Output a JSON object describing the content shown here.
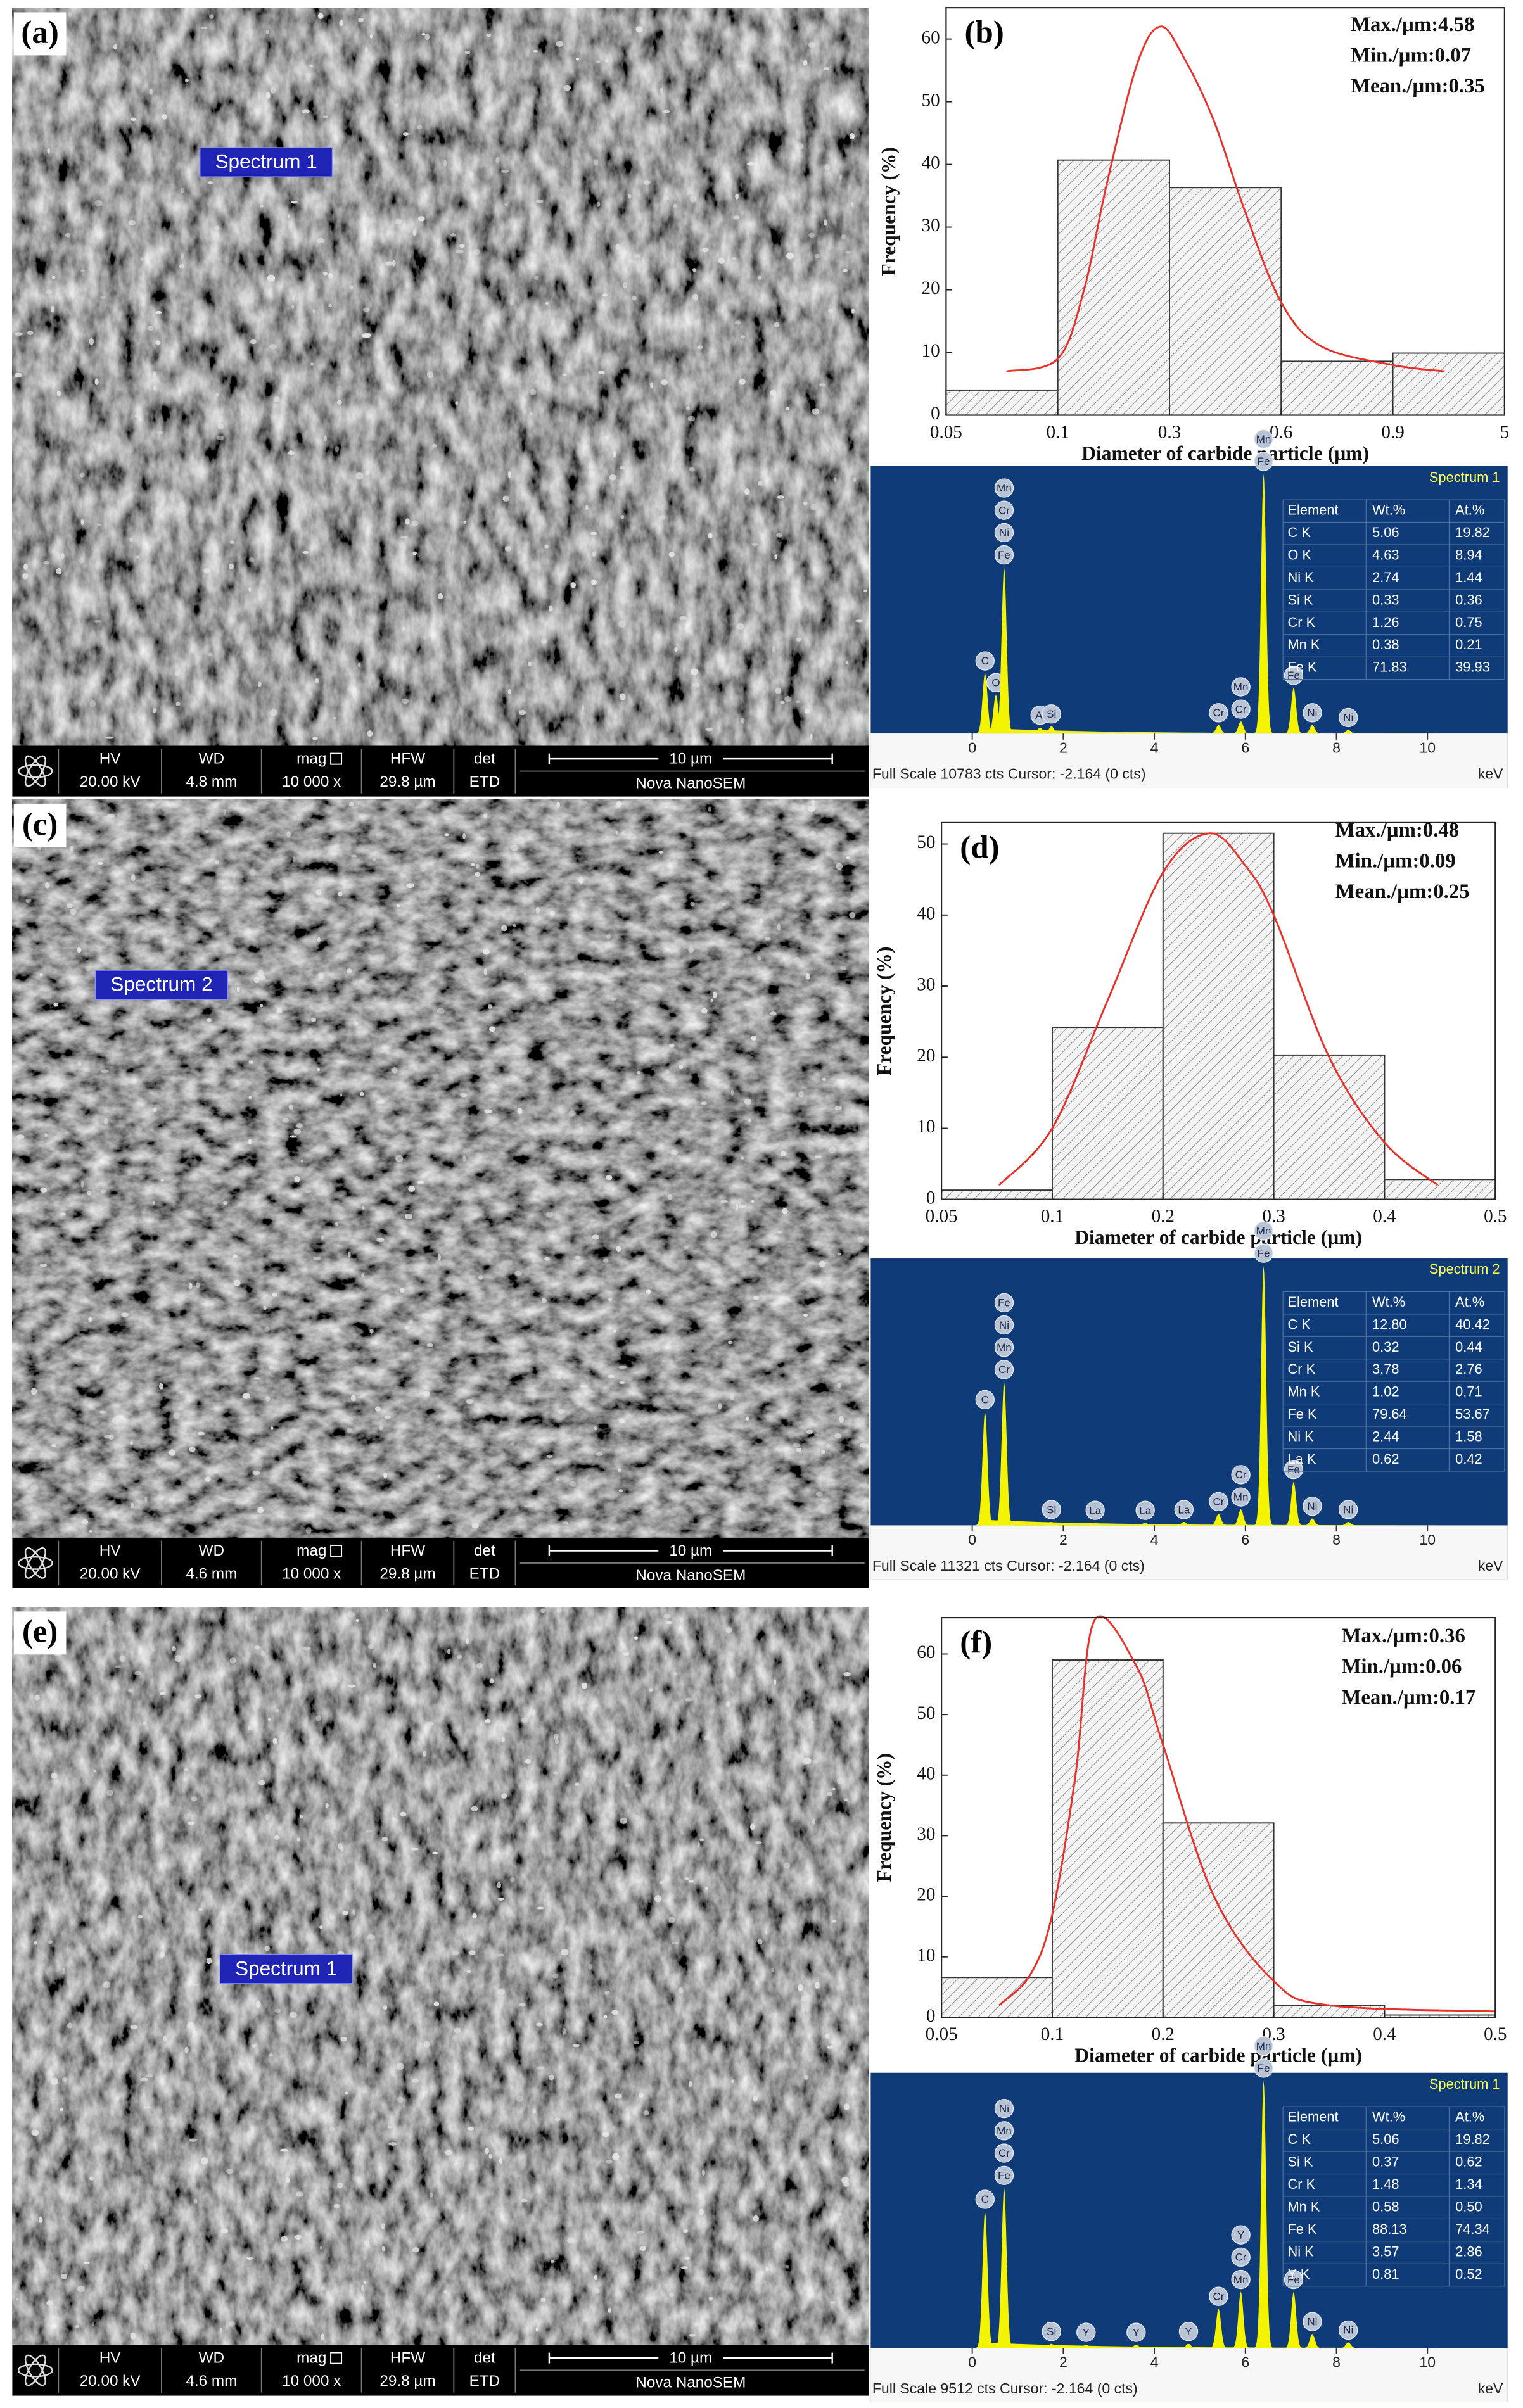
{
  "sem_images": [
    {
      "panel_label": "(a)",
      "spectrum_label": "Spectrum 1",
      "info": [
        [
          "HV",
          "20.00 kV"
        ],
        [
          "WD",
          "4.8 mm"
        ],
        [
          "mag",
          "10 000 x"
        ],
        [
          "HFW",
          "29.8 µm"
        ],
        [
          "det",
          "ETD"
        ]
      ],
      "scale_bar": "10 µm",
      "instrument": "Nova NanoSEM"
    },
    {
      "panel_label": "(c)",
      "spectrum_label": "Spectrum 2",
      "info": [
        [
          "HV",
          "20.00 kV"
        ],
        [
          "WD",
          "4.6 mm"
        ],
        [
          "mag",
          "10 000 x"
        ],
        [
          "HFW",
          "29.8 µm"
        ],
        [
          "det",
          "ETD"
        ]
      ],
      "scale_bar": "10 µm",
      "instrument": "Nova NanoSEM"
    },
    {
      "panel_label": "(e)",
      "spectrum_label": "Spectrum 1",
      "info": [
        [
          "HV",
          "20.00 kV"
        ],
        [
          "WD",
          "4.6 mm"
        ],
        [
          "mag",
          "10 000 x"
        ],
        [
          "HFW",
          "29.8 µm"
        ],
        [
          "det",
          "ETD"
        ]
      ],
      "scale_bar": "10 µm",
      "instrument": "Nova NanoSEM"
    }
  ],
  "chart_data": [
    {
      "type": "histogram",
      "panel_label": "(b)",
      "x_label": "Diameter of carbide particle (µm)",
      "y_label": "Frequency (%)",
      "bins": [
        0.05,
        0.1,
        0.3,
        0.6,
        0.9,
        5
      ],
      "values": [
        4,
        40.7,
        36.3,
        8.6,
        9.9
      ],
      "color": "#f4f4f4",
      "hatch": true,
      "x_tick_spacing": "equal",
      "xlim": [
        0.05,
        5
      ],
      "xticks": [
        0.05,
        0.1,
        0.3,
        0.6,
        0.9,
        5
      ],
      "ylim": [
        0,
        65
      ],
      "yticks": [
        0,
        10,
        20,
        30,
        40,
        50,
        60
      ],
      "annotations": [
        "Max./µm:4.58",
        "Min./µm:0.07",
        "Mean./µm:0.35"
      ],
      "fit": {
        "color": "#e8312b",
        "x": [
          0.077,
          0.1,
          0.147,
          0.188,
          0.242,
          0.284,
          0.339,
          0.419,
          0.5,
          0.6,
          0.707,
          0.9,
          2.8
        ],
        "values": [
          7,
          9,
          20,
          37,
          56,
          62,
          57,
          47,
          33,
          18,
          11,
          8,
          7
        ]
      }
    },
    {
      "type": "spectrum",
      "title": "Spectrum 1",
      "x_label": "keV",
      "color": "#f4f400",
      "background": "#0f3b78",
      "xlim": [
        -2.23,
        11.76
      ],
      "xticks": [
        0,
        2,
        4,
        6,
        8,
        10
      ],
      "ylim": [
        0,
        10783
      ],
      "footer": "Full Scale 10783 cts Cursor: -2.164  (0 cts)",
      "peaks": [
        {
          "x": 0.28,
          "value": 2500,
          "labels": [
            "C"
          ]
        },
        {
          "x": 0.52,
          "value": 1600,
          "labels": [
            "O"
          ]
        },
        {
          "x": 0.7,
          "value": 6900,
          "labels": [
            "Mn",
            "Cr",
            "Ni",
            "Fe"
          ]
        },
        {
          "x": 1.49,
          "value": 250,
          "labels": [
            "Al"
          ]
        },
        {
          "x": 1.74,
          "value": 300,
          "labels": [
            "Si"
          ]
        },
        {
          "x": 5.41,
          "value": 350,
          "labels": [
            "Cr"
          ]
        },
        {
          "x": 5.9,
          "value": 500,
          "labels": [
            "Mn",
            "Cr"
          ]
        },
        {
          "x": 6.4,
          "value": 10783,
          "labels": [
            "Mn",
            "Fe"
          ]
        },
        {
          "x": 7.06,
          "value": 1900,
          "labels": [
            "Fe"
          ]
        },
        {
          "x": 7.47,
          "value": 350,
          "labels": [
            "Ni"
          ]
        },
        {
          "x": 8.26,
          "value": 150,
          "labels": [
            "Ni"
          ]
        }
      ],
      "table": {
        "header": [
          "Element",
          "Wt.%",
          "At.%"
        ],
        "rows": [
          [
            "C K",
            "5.06",
            "19.82"
          ],
          [
            "O K",
            "4.63",
            "8.94"
          ],
          [
            "Ni K",
            "2.74",
            "1.44"
          ],
          [
            "Si K",
            "0.33",
            "0.36"
          ],
          [
            "Cr K",
            "1.26",
            "0.75"
          ],
          [
            "Mn K",
            "0.38",
            "0.21"
          ],
          [
            "Fe K",
            "71.83",
            "39.93"
          ]
        ]
      }
    },
    {
      "type": "histogram",
      "panel_label": "(d)",
      "x_label": "Diameter of carbide particle (µm)",
      "y_label": "Frequency (%)",
      "bins": [
        0.05,
        0.1,
        0.2,
        0.3,
        0.4,
        0.5
      ],
      "values": [
        1.3,
        24.2,
        51.5,
        20.3,
        2.8
      ],
      "color": "#f4f4f4",
      "hatch": true,
      "x_tick_spacing": "equal",
      "xlim": [
        0.05,
        0.5
      ],
      "xticks": [
        0.05,
        0.1,
        0.2,
        0.3,
        0.4,
        0.5
      ],
      "ylim": [
        0,
        53
      ],
      "yticks": [
        0,
        10,
        20,
        30,
        40,
        50
      ],
      "annotations": [
        "Max./µm:0.48",
        "Min./µm:0.09",
        "Mean./µm:0.25"
      ],
      "fit": {
        "color": "#e8312b",
        "x": [
          0.076,
          0.1,
          0.15,
          0.2,
          0.242,
          0.274,
          0.3,
          0.35,
          0.4,
          0.448
        ],
        "values": [
          2,
          10,
          28,
          46,
          51.5,
          47,
          40,
          20,
          8,
          2
        ]
      }
    },
    {
      "type": "spectrum",
      "title": "Spectrum 2",
      "x_label": "keV",
      "color": "#f4f400",
      "background": "#0f3b78",
      "xlim": [
        -2.23,
        11.76
      ],
      "xticks": [
        0,
        2,
        4,
        6,
        8,
        10
      ],
      "ylim": [
        0,
        11321
      ],
      "footer": "Full Scale 11321 cts Cursor: -2.164  (0 cts)",
      "peaks": [
        {
          "x": 0.28,
          "value": 4940,
          "labels": [
            "C"
          ]
        },
        {
          "x": 0.7,
          "value": 6250,
          "labels": [
            "Fe",
            "Ni",
            "Mn",
            "Cr"
          ]
        },
        {
          "x": 1.74,
          "value": 150,
          "labels": [
            "Si"
          ]
        },
        {
          "x": 2.7,
          "value": 120,
          "labels": [
            "La"
          ]
        },
        {
          "x": 3.8,
          "value": 120,
          "labels": [
            "La"
          ]
        },
        {
          "x": 4.65,
          "value": 150,
          "labels": [
            "La"
          ]
        },
        {
          "x": 5.41,
          "value": 500,
          "labels": [
            "Cr"
          ]
        },
        {
          "x": 5.9,
          "value": 700,
          "labels": [
            "Cr",
            "Mn"
          ]
        },
        {
          "x": 6.4,
          "value": 11321,
          "labels": [
            "Mn",
            "Fe"
          ]
        },
        {
          "x": 7.06,
          "value": 1900,
          "labels": [
            "Fe"
          ]
        },
        {
          "x": 7.47,
          "value": 300,
          "labels": [
            "Ni"
          ]
        },
        {
          "x": 8.26,
          "value": 150,
          "labels": [
            "Ni"
          ]
        }
      ],
      "table": {
        "header": [
          "Element",
          "Wt.%",
          "At.%"
        ],
        "rows": [
          [
            "C K",
            "12.80",
            "40.42"
          ],
          [
            "Si K",
            "0.32",
            "0.44"
          ],
          [
            "Cr K",
            "3.78",
            "2.76"
          ],
          [
            "Mn K",
            "1.02",
            "0.71"
          ],
          [
            "Fe K",
            "79.64",
            "53.67"
          ],
          [
            "Ni K",
            "2.44",
            "1.58"
          ],
          [
            "La K",
            "0.62",
            "0.42"
          ]
        ]
      }
    },
    {
      "type": "histogram",
      "panel_label": "(f)",
      "x_label": "Diameter of carbide particle (µm)",
      "y_label": "Frequency (%)",
      "bins": [
        0.05,
        0.1,
        0.2,
        0.3,
        0.4,
        0.5
      ],
      "values": [
        6.6,
        59,
        32.1,
        2,
        0.4
      ],
      "color": "#f4f4f4",
      "hatch": true,
      "x_tick_spacing": "equal",
      "xlim": [
        0.05,
        0.5
      ],
      "xticks": [
        0.05,
        0.1,
        0.2,
        0.3,
        0.4,
        0.5
      ],
      "ylim": [
        0,
        66
      ],
      "yticks": [
        0,
        10,
        20,
        30,
        40,
        50,
        60
      ],
      "annotations": [
        "Max./µm:0.36",
        "Min./µm:0.06",
        "Mean./µm:0.17"
      ],
      "fit": {
        "color": "#e8312b",
        "x": [
          0.076,
          0.09,
          0.1,
          0.121,
          0.138,
          0.176,
          0.2,
          0.246,
          0.3,
          0.35,
          0.5
        ],
        "values": [
          2,
          7,
          17,
          40,
          65.5,
          58,
          45,
          20,
          6,
          2,
          1
        ]
      }
    },
    {
      "type": "spectrum",
      "title": "Spectrum 1",
      "x_label": "keV",
      "color": "#f4f400",
      "background": "#0f3b78",
      "xlim": [
        -2.23,
        11.76
      ],
      "xticks": [
        0,
        2,
        4,
        6,
        8,
        10
      ],
      "ylim": [
        0,
        9512
      ],
      "footer": "Full Scale 9512 cts Cursor: -2.164  (0 cts)",
      "peaks": [
        {
          "x": 0.28,
          "value": 4850,
          "labels": [
            "C"
          ]
        },
        {
          "x": 0.7,
          "value": 5700,
          "labels": [
            "Ni",
            "Mn",
            "Cr",
            "Fe"
          ]
        },
        {
          "x": 1.74,
          "value": 150,
          "labels": [
            "Si"
          ]
        },
        {
          "x": 2.5,
          "value": 120,
          "labels": [
            "Y"
          ]
        },
        {
          "x": 3.6,
          "value": 120,
          "labels": [
            "Y"
          ]
        },
        {
          "x": 4.75,
          "value": 150,
          "labels": [
            "Y"
          ]
        },
        {
          "x": 5.41,
          "value": 1400,
          "labels": [
            "Cr"
          ]
        },
        {
          "x": 5.9,
          "value": 2000,
          "labels": [
            "Y",
            "Cr",
            "Mn"
          ]
        },
        {
          "x": 6.4,
          "value": 9512,
          "labels": [
            "Mn",
            "Fe"
          ]
        },
        {
          "x": 7.06,
          "value": 2000,
          "labels": [
            "Fe"
          ]
        },
        {
          "x": 7.47,
          "value": 500,
          "labels": [
            "Ni"
          ]
        },
        {
          "x": 8.26,
          "value": 200,
          "labels": [
            "Ni"
          ]
        }
      ],
      "table": {
        "header": [
          "Element",
          "Wt.%",
          "At.%"
        ],
        "rows": [
          [
            "C K",
            "5.06",
            "19.82"
          ],
          [
            "Si K",
            "0.37",
            "0.62"
          ],
          [
            "Cr K",
            "1.48",
            "1.34"
          ],
          [
            "Mn K",
            "0.58",
            "0.50"
          ],
          [
            "Fe K",
            "88.13",
            "74.34"
          ],
          [
            "Ni K",
            "3.57",
            "2.86"
          ],
          [
            "Y K",
            "0.81",
            "0.52"
          ]
        ]
      }
    }
  ]
}
